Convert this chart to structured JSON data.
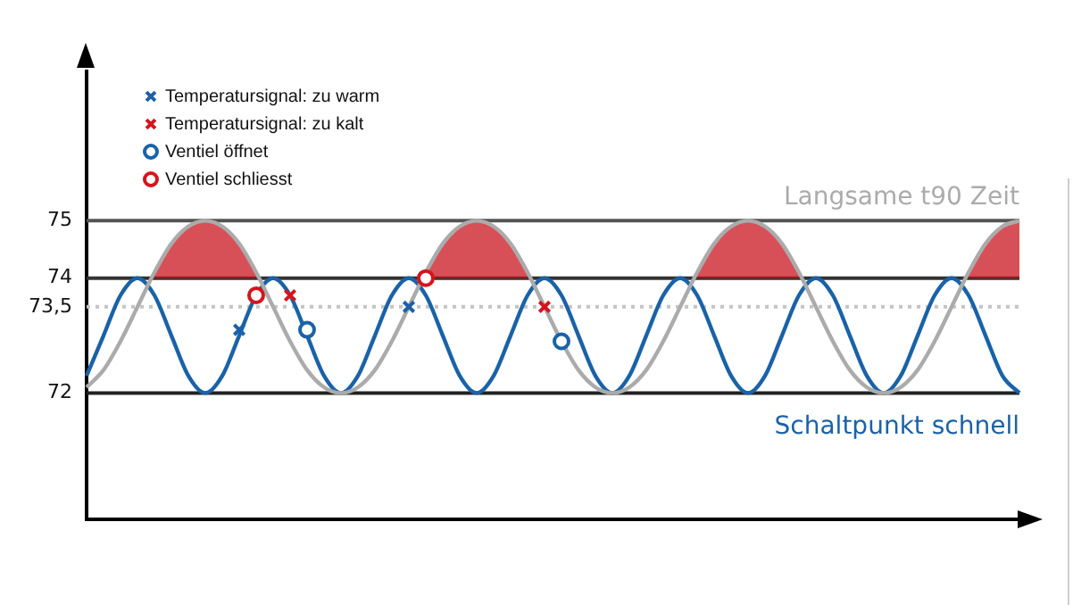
{
  "chart_data": {
    "type": "line",
    "categories": [
      null,
      null,
      null,
      null,
      null,
      null,
      null,
      null,
      null,
      null,
      null,
      null,
      null,
      null,
      null,
      null,
      null,
      null,
      null,
      null,
      null,
      null,
      null,
      null,
      null,
      null,
      null,
      null,
      null,
      null,
      null,
      null,
      null,
      null,
      null,
      null,
      null,
      null,
      null,
      null,
      null,
      null,
      null,
      null,
      null,
      null,
      null,
      null,
      null,
      null,
      null,
      null,
      null,
      null,
      null,
      null
    ],
    "series": [
      {
        "name": "Langsame t90 Zeit",
        "color": "#ababab",
        "values": [
          72.1,
          72.4,
          72.9,
          73.5,
          74.1,
          74.6,
          74.9,
          75,
          74.9,
          74.6,
          74.1,
          73.5,
          72.9,
          72.4,
          72.1,
          72,
          72.1,
          72.4,
          72.9,
          73.5,
          74.1,
          74.6,
          74.9,
          75,
          74.9,
          74.6,
          74.1,
          73.5,
          72.9,
          72.4,
          72.1,
          72,
          72.1,
          72.4,
          72.9,
          73.5,
          74.1,
          74.6,
          74.9,
          75,
          74.9,
          74.6,
          74.1,
          73.5,
          72.9,
          72.4,
          72.1,
          72,
          72.1,
          72.4,
          72.9,
          73.5,
          74.1,
          74.6,
          74.9,
          75
        ]
      },
      {
        "name": "Schaltpunkt schnell",
        "color": "#1a62a8",
        "values": [
          72.3,
          73,
          73.7,
          74,
          73.7,
          73,
          72.3,
          72,
          72.3,
          73,
          73.7,
          74,
          73.7,
          73,
          72.3,
          72,
          72.3,
          73,
          73.7,
          74,
          73.7,
          73,
          72.3,
          72,
          72.3,
          73,
          73.7,
          74,
          73.7,
          73,
          72.3,
          72,
          72.3,
          73,
          73.7,
          74,
          73.7,
          73,
          72.3,
          72,
          72.3,
          73,
          73.7,
          74,
          73.7,
          73,
          72.3,
          72,
          72.3,
          73,
          73.7,
          74,
          73.7,
          73,
          72.3,
          72
        ]
      },
      {
        "type": "area",
        "color": "#c8101a",
        "values": [
          null,
          null,
          null,
          null,
          74.1,
          74.6,
          74.9,
          75,
          74.9,
          74.6,
          74.1,
          null,
          null,
          null,
          null,
          null,
          null,
          null,
          null,
          null,
          74.1,
          74.6,
          74.9,
          75,
          74.9,
          74.6,
          74.1,
          null,
          null,
          null,
          null,
          null,
          null,
          null,
          null,
          null,
          74.1,
          74.6,
          74.9,
          75,
          74.9,
          74.6,
          74.1,
          null,
          null,
          null,
          null,
          null,
          null,
          null,
          null,
          null,
          74.1,
          74.6,
          74.9,
          75
        ]
      },
      {
        "type": "scatter",
        "name": "Temperatursignal: zu warm",
        "marker": "cross",
        "color": "#1a62a8",
        "values": [
          null,
          null,
          null,
          null,
          null,
          null,
          null,
          null,
          null,
          73.1,
          null,
          null,
          null,
          null,
          null,
          null,
          null,
          null,
          null,
          73.5,
          null,
          null,
          null,
          null,
          null,
          null,
          null,
          null,
          null,
          null,
          null,
          null,
          null,
          null,
          null,
          null,
          null,
          null,
          null,
          null,
          null,
          null,
          null,
          null,
          null,
          null,
          null,
          null,
          null,
          null,
          null,
          null,
          null,
          null,
          null,
          null
        ]
      },
      {
        "type": "scatter",
        "name": "Temperatursignal: zu kalt",
        "marker": "cross",
        "color": "#d6141d",
        "values": [
          null,
          null,
          null,
          null,
          null,
          null,
          null,
          null,
          null,
          null,
          null,
          null,
          73.7,
          null,
          null,
          null,
          null,
          null,
          null,
          null,
          null,
          null,
          null,
          null,
          null,
          null,
          null,
          73.5,
          null,
          null,
          null,
          null,
          null,
          null,
          null,
          null,
          null,
          null,
          null,
          null,
          null,
          null,
          null,
          null,
          null,
          null,
          null,
          null,
          null,
          null,
          null,
          null,
          null,
          null,
          null,
          null
        ]
      },
      {
        "type": "scatter",
        "name": "Ventiel öffnet",
        "marker": "circle",
        "color": "#1a62a8",
        "values": [
          null,
          null,
          null,
          null,
          null,
          null,
          null,
          null,
          null,
          null,
          null,
          null,
          null,
          73.1,
          null,
          null,
          null,
          null,
          null,
          null,
          null,
          null,
          null,
          null,
          null,
          null,
          null,
          null,
          72.9,
          null,
          null,
          null,
          null,
          null,
          null,
          null,
          null,
          null,
          null,
          null,
          null,
          null,
          null,
          null,
          null,
          null,
          null,
          null,
          null,
          null,
          null,
          null,
          null,
          null,
          null,
          null
        ]
      },
      {
        "type": "scatter",
        "name": "Ventiel schliesst",
        "marker": "circle",
        "color": "#d6141d",
        "values": [
          null,
          null,
          null,
          null,
          null,
          null,
          null,
          null,
          null,
          null,
          73.7,
          null,
          null,
          null,
          null,
          null,
          null,
          null,
          null,
          null,
          74,
          null,
          null,
          null,
          null,
          null,
          null,
          null,
          null,
          null,
          null,
          null,
          null,
          null,
          null,
          null,
          null,
          null,
          null,
          null,
          null,
          null,
          null,
          null,
          null,
          null,
          null,
          null,
          null,
          null,
          null,
          null,
          null,
          null,
          null,
          null
        ]
      }
    ],
    "ylim": [
      69.8,
      77.6
    ],
    "yticks": [
      72,
      {
        "value": 73.5,
        "label": "73,5"
      },
      74,
      75
    ],
    "ref_lines": [
      {
        "axis": "y",
        "value": 75,
        "color": "#555555",
        "line_style": "solid"
      },
      {
        "axis": "y",
        "value": 74,
        "color": "#333333",
        "line_style": "solid"
      },
      {
        "axis": "y",
        "value": 73.5,
        "color": "#c4c4c4",
        "line_style": "dotted"
      },
      {
        "axis": "y",
        "value": 72,
        "color": "#222222",
        "line_style": "solid"
      }
    ],
    "grid": false,
    "legend": "top left",
    "tick_labels": "y"
  }
}
